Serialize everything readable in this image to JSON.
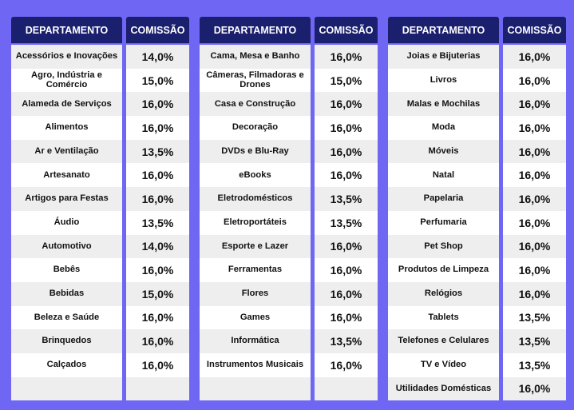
{
  "header": {
    "department": "DEPARTAMENTO",
    "commission": "COMISSÃO"
  },
  "tables": [
    {
      "rows": [
        {
          "department": "Acessórios e Inovações",
          "commission": "14,0%"
        },
        {
          "department": "Agro, Indústria e Comércio",
          "commission": "15,0%"
        },
        {
          "department": "Alameda de Serviços",
          "commission": "16,0%"
        },
        {
          "department": "Alimentos",
          "commission": "16,0%"
        },
        {
          "department": "Ar e Ventilação",
          "commission": "13,5%"
        },
        {
          "department": "Artesanato",
          "commission": "16,0%"
        },
        {
          "department": "Artigos para Festas",
          "commission": "16,0%"
        },
        {
          "department": "Áudio",
          "commission": "13,5%"
        },
        {
          "department": "Automotivo",
          "commission": "14,0%"
        },
        {
          "department": "Bebês",
          "commission": "16,0%"
        },
        {
          "department": "Bebidas",
          "commission": "15,0%"
        },
        {
          "department": "Beleza e Saúde",
          "commission": "16,0%"
        },
        {
          "department": "Brinquedos",
          "commission": "16,0%"
        },
        {
          "department": "Calçados",
          "commission": "16,0%"
        },
        {
          "department": "",
          "commission": ""
        }
      ]
    },
    {
      "rows": [
        {
          "department": "Cama, Mesa e Banho",
          "commission": "16,0%"
        },
        {
          "department": "Câmeras, Filmadoras e Drones",
          "commission": "15,0%"
        },
        {
          "department": "Casa e Construção",
          "commission": "16,0%"
        },
        {
          "department": "Decoração",
          "commission": "16,0%"
        },
        {
          "department": "DVDs e Blu-Ray",
          "commission": "16,0%"
        },
        {
          "department": "eBooks",
          "commission": "16,0%"
        },
        {
          "department": "Eletrodomésticos",
          "commission": "13,5%"
        },
        {
          "department": "Eletroportáteis",
          "commission": "13,5%"
        },
        {
          "department": "Esporte e Lazer",
          "commission": "16,0%"
        },
        {
          "department": "Ferramentas",
          "commission": "16,0%"
        },
        {
          "department": "Flores",
          "commission": "16,0%"
        },
        {
          "department": "Games",
          "commission": "16,0%"
        },
        {
          "department": "Informática",
          "commission": "13,5%"
        },
        {
          "department": "Instrumentos Musicais",
          "commission": "16,0%"
        },
        {
          "department": "",
          "commission": ""
        }
      ]
    },
    {
      "rows": [
        {
          "department": "Joias e Bijuterias",
          "commission": "16,0%"
        },
        {
          "department": "Livros",
          "commission": "16,0%"
        },
        {
          "department": "Malas e Mochilas",
          "commission": "16,0%"
        },
        {
          "department": "Moda",
          "commission": "16,0%"
        },
        {
          "department": "Móveis",
          "commission": "16,0%"
        },
        {
          "department": "Natal",
          "commission": "16,0%"
        },
        {
          "department": "Papelaria",
          "commission": "16,0%"
        },
        {
          "department": "Perfumaria",
          "commission": "16,0%"
        },
        {
          "department": "Pet Shop",
          "commission": "16,0%"
        },
        {
          "department": "Produtos de Limpeza",
          "commission": "16,0%"
        },
        {
          "department": "Relógios",
          "commission": "16,0%"
        },
        {
          "department": "Tablets",
          "commission": "13,5%"
        },
        {
          "department": "Telefones e Celulares",
          "commission": "13,5%"
        },
        {
          "department": "TV e Vídeo",
          "commission": "13,5%"
        },
        {
          "department": "Utilidades Domésticas",
          "commission": "16,0%"
        }
      ]
    }
  ]
}
